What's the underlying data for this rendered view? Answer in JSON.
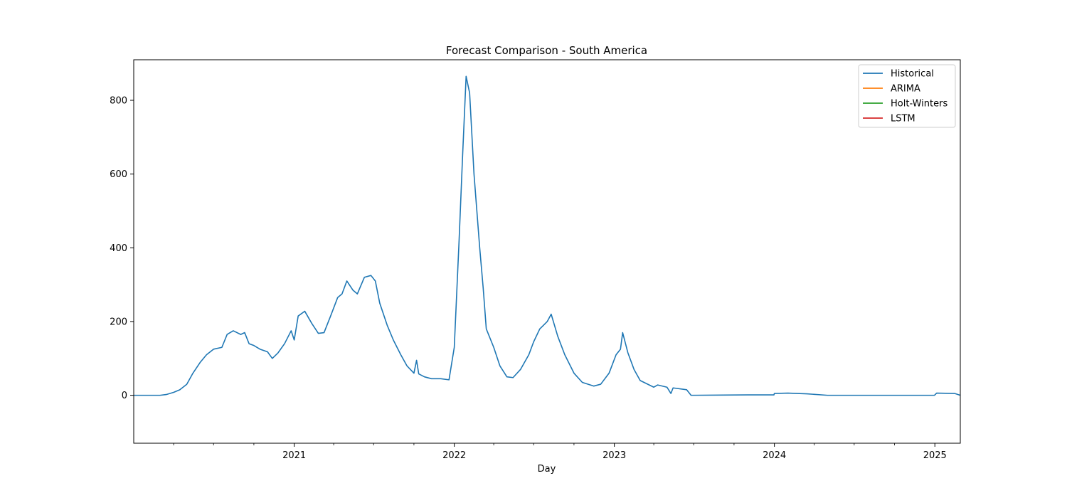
{
  "chart_data": {
    "type": "line",
    "title": "Forecast Comparison - South America",
    "xlabel": "Day",
    "ylabel": "",
    "x_type": "date",
    "xlim": [
      "2020-01-01",
      "2025-02-28"
    ],
    "ylim": [
      -130,
      910
    ],
    "x_ticks": [
      {
        "date": "2021-01-01",
        "label": "2021"
      },
      {
        "date": "2022-01-01",
        "label": "2022"
      },
      {
        "date": "2023-01-01",
        "label": "2023"
      },
      {
        "date": "2024-01-01",
        "label": "2024"
      },
      {
        "date": "2025-01-01",
        "label": "2025"
      }
    ],
    "x_minor_ticks": [
      "2020-04-01",
      "2020-07-01",
      "2020-10-01",
      "2021-04-01",
      "2021-07-01",
      "2021-10-01",
      "2022-04-01",
      "2022-07-01",
      "2022-10-01",
      "2023-04-01",
      "2023-07-01",
      "2023-10-01",
      "2024-04-01",
      "2024-07-01",
      "2024-10-01"
    ],
    "y_ticks": [
      0,
      200,
      400,
      600,
      800
    ],
    "grid": false,
    "legend_position": "top-right",
    "series": [
      {
        "name": "Historical",
        "color": "#1f77b4",
        "points": [
          [
            "2020-01-01",
            0
          ],
          [
            "2020-03-01",
            0
          ],
          [
            "2020-03-15",
            2
          ],
          [
            "2020-04-01",
            8
          ],
          [
            "2020-04-15",
            15
          ],
          [
            "2020-05-01",
            30
          ],
          [
            "2020-05-15",
            60
          ],
          [
            "2020-06-01",
            90
          ],
          [
            "2020-06-15",
            110
          ],
          [
            "2020-07-01",
            125
          ],
          [
            "2020-07-20",
            130
          ],
          [
            "2020-08-01",
            165
          ],
          [
            "2020-08-15",
            175
          ],
          [
            "2020-09-01",
            165
          ],
          [
            "2020-09-10",
            170
          ],
          [
            "2020-09-20",
            140
          ],
          [
            "2020-10-01",
            135
          ],
          [
            "2020-10-15",
            125
          ],
          [
            "2020-11-01",
            118
          ],
          [
            "2020-11-12",
            100
          ],
          [
            "2020-11-25",
            115
          ],
          [
            "2020-12-10",
            140
          ],
          [
            "2020-12-25",
            175
          ],
          [
            "2021-01-01",
            150
          ],
          [
            "2021-01-10",
            215
          ],
          [
            "2021-01-25",
            228
          ],
          [
            "2021-02-10",
            195
          ],
          [
            "2021-02-25",
            168
          ],
          [
            "2021-03-10",
            170
          ],
          [
            "2021-03-25",
            215
          ],
          [
            "2021-04-10",
            265
          ],
          [
            "2021-04-20",
            275
          ],
          [
            "2021-05-01",
            310
          ],
          [
            "2021-05-15",
            285
          ],
          [
            "2021-05-25",
            275
          ],
          [
            "2021-06-10",
            320
          ],
          [
            "2021-06-25",
            325
          ],
          [
            "2021-07-05",
            310
          ],
          [
            "2021-07-15",
            250
          ],
          [
            "2021-08-01",
            190
          ],
          [
            "2021-08-15",
            150
          ],
          [
            "2021-09-01",
            110
          ],
          [
            "2021-09-15",
            80
          ],
          [
            "2021-10-01",
            60
          ],
          [
            "2021-10-07",
            95
          ],
          [
            "2021-10-12",
            58
          ],
          [
            "2021-10-25",
            50
          ],
          [
            "2021-11-10",
            45
          ],
          [
            "2021-12-01",
            45
          ],
          [
            "2021-12-20",
            42
          ],
          [
            "2022-01-01",
            130
          ],
          [
            "2022-01-12",
            420
          ],
          [
            "2022-01-20",
            650
          ],
          [
            "2022-01-28",
            865
          ],
          [
            "2022-02-05",
            820
          ],
          [
            "2022-02-15",
            600
          ],
          [
            "2022-02-28",
            400
          ],
          [
            "2022-03-08",
            290
          ],
          [
            "2022-03-15",
            180
          ],
          [
            "2022-04-01",
            130
          ],
          [
            "2022-04-15",
            80
          ],
          [
            "2022-05-01",
            50
          ],
          [
            "2022-05-15",
            48
          ],
          [
            "2022-06-01",
            70
          ],
          [
            "2022-06-20",
            110
          ],
          [
            "2022-07-01",
            145
          ],
          [
            "2022-07-15",
            180
          ],
          [
            "2022-08-01",
            200
          ],
          [
            "2022-08-10",
            220
          ],
          [
            "2022-08-25",
            160
          ],
          [
            "2022-09-10",
            110
          ],
          [
            "2022-10-01",
            60
          ],
          [
            "2022-10-20",
            35
          ],
          [
            "2022-11-15",
            25
          ],
          [
            "2022-12-01",
            30
          ],
          [
            "2022-12-20",
            60
          ],
          [
            "2023-01-05",
            110
          ],
          [
            "2023-01-15",
            125
          ],
          [
            "2023-01-20",
            170
          ],
          [
            "2023-02-01",
            115
          ],
          [
            "2023-02-15",
            70
          ],
          [
            "2023-03-01",
            40
          ],
          [
            "2023-04-01",
            22
          ],
          [
            "2023-04-10",
            28
          ],
          [
            "2023-05-01",
            22
          ],
          [
            "2023-05-10",
            5
          ],
          [
            "2023-05-15",
            20
          ],
          [
            "2023-06-15",
            15
          ],
          [
            "2023-06-25",
            0
          ],
          [
            "2023-11-01",
            1
          ],
          [
            "2023-12-31",
            1
          ],
          [
            "2024-01-01",
            5
          ],
          [
            "2024-02-01",
            6
          ],
          [
            "2024-03-15",
            4
          ],
          [
            "2024-05-01",
            0
          ],
          [
            "2024-12-31",
            0
          ],
          [
            "2025-01-05",
            6
          ],
          [
            "2025-02-15",
            5
          ],
          [
            "2025-02-28",
            0
          ]
        ]
      },
      {
        "name": "ARIMA",
        "color": "#ff7f0e",
        "points": []
      },
      {
        "name": "Holt-Winters",
        "color": "#2ca02c",
        "points": []
      },
      {
        "name": "LSTM",
        "color": "#d62728",
        "points": []
      }
    ]
  }
}
